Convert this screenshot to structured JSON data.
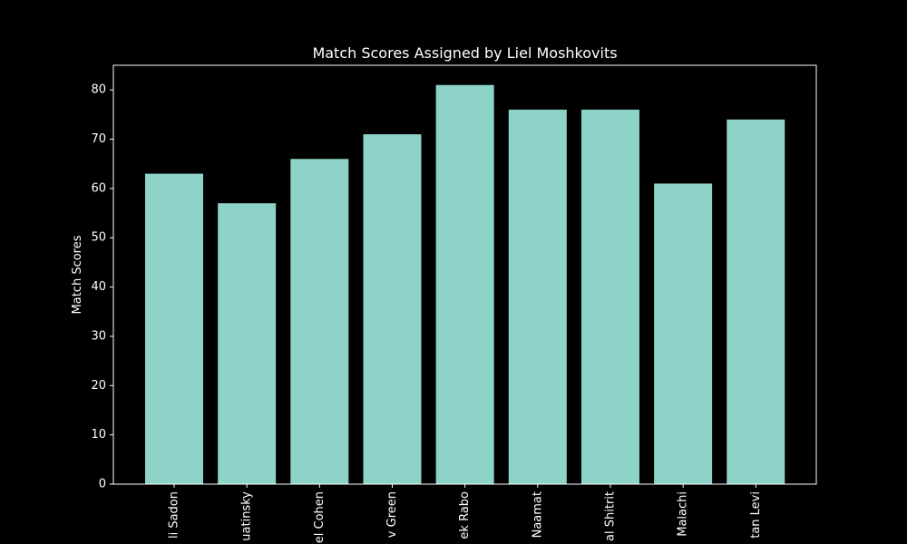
{
  "chart_data": {
    "type": "bar",
    "title": "Match Scores Assigned by Liel Moshkovits",
    "xlabel": "",
    "ylabel": "Match Scores",
    "categories": [
      "li Sadon",
      "uatinsky",
      "el Cohen",
      "v Green",
      "ek Rabo",
      "Naamat",
      "al Shitrit",
      "Malachi",
      "tan Levi"
    ],
    "values": [
      63,
      57,
      66,
      71,
      81,
      76,
      76,
      61,
      74
    ],
    "ylim": [
      0,
      85
    ],
    "yticks": [
      0,
      10,
      20,
      30,
      40,
      50,
      60,
      70,
      80
    ],
    "grid": false,
    "bar_color": "#8dd3c7",
    "background_color": "#000000",
    "text_color": "#ffffff"
  }
}
